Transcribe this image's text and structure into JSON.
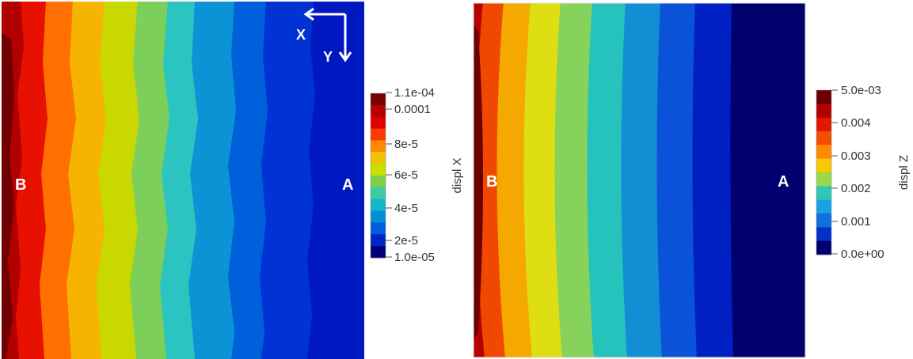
{
  "left_panel": {
    "point_labels": {
      "b": "B",
      "a": "A"
    },
    "axes": {
      "x_label": "X",
      "y_label": "Y"
    },
    "colorbar": {
      "title": "displ X",
      "tick_labels": [
        "1.1e-04",
        "0.0001",
        "8e-5",
        "6e-5",
        "4e-5",
        "2e-5",
        "1.0e-05"
      ],
      "colors": [
        "#7a0000",
        "#b40000",
        "#e00000",
        "#ff3a00",
        "#ff8a00",
        "#f2c200",
        "#c8e000",
        "#7ccf48",
        "#3dcaa4",
        "#12b8c8",
        "#0090d8",
        "#005ce0",
        "#0024c8",
        "#00007a"
      ]
    }
  },
  "right_panel": {
    "point_labels": {
      "b": "B",
      "a": "A"
    },
    "colorbar": {
      "title": "displ Z",
      "tick_labels": [
        "5.0e-03",
        "0.004",
        "0.003",
        "0.002",
        "0.001",
        "0.0e+00"
      ],
      "colors": [
        "#6a0000",
        "#b00000",
        "#e01800",
        "#f04e00",
        "#ff8c00",
        "#f8c800",
        "#9ad84a",
        "#2ec8b4",
        "#1aa0e0",
        "#1070e0",
        "#0032c8",
        "#00006e"
      ]
    }
  }
}
